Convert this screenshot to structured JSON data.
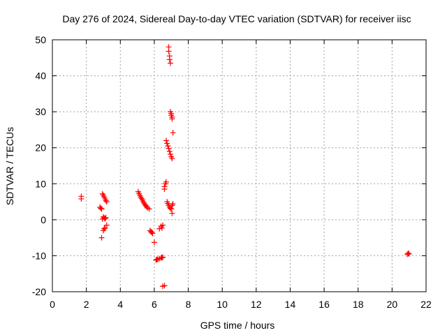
{
  "chart_data": {
    "type": "scatter",
    "title": "Day 276 of 2024, Sidereal Day-to-day VTEC variation (SDTVAR) for receiver iisc",
    "xlabel": "GPS time / hours",
    "ylabel": "SDTVAR / TECUs",
    "xlim": [
      0,
      22
    ],
    "ylim": [
      -20,
      50
    ],
    "xticks": [
      0,
      2,
      4,
      6,
      8,
      10,
      12,
      14,
      16,
      18,
      20,
      22
    ],
    "yticks": [
      -20,
      -10,
      0,
      10,
      20,
      30,
      40,
      50
    ],
    "grid": true,
    "marker": "plus",
    "color": "#ff0000",
    "series": [
      {
        "name": "SDTVAR",
        "points": [
          [
            1.7,
            6.5
          ],
          [
            1.7,
            5.8
          ],
          [
            2.8,
            3.5
          ],
          [
            2.85,
            3.2
          ],
          [
            2.9,
            3.0
          ],
          [
            2.95,
            7.2
          ],
          [
            3.0,
            6.8
          ],
          [
            3.05,
            6.3
          ],
          [
            3.1,
            5.8
          ],
          [
            3.15,
            5.3
          ],
          [
            3.2,
            5.0
          ],
          [
            2.95,
            0.2
          ],
          [
            3.0,
            0.8
          ],
          [
            3.05,
            0.5
          ],
          [
            3.1,
            0.3
          ],
          [
            3.15,
            0.6
          ],
          [
            2.9,
            -5.0
          ],
          [
            3.0,
            -3.0
          ],
          [
            3.05,
            -2.5
          ],
          [
            3.1,
            -2.3
          ],
          [
            3.2,
            -1.5
          ],
          [
            5.05,
            7.8
          ],
          [
            5.1,
            7.3
          ],
          [
            5.15,
            6.8
          ],
          [
            5.2,
            6.3
          ],
          [
            5.25,
            5.9
          ],
          [
            5.3,
            5.5
          ],
          [
            5.35,
            5.0
          ],
          [
            5.4,
            4.6
          ],
          [
            5.45,
            4.2
          ],
          [
            5.5,
            3.9
          ],
          [
            5.55,
            3.6
          ],
          [
            5.6,
            3.3
          ],
          [
            5.7,
            3.0
          ],
          [
            5.75,
            -3.0
          ],
          [
            5.8,
            -3.3
          ],
          [
            5.85,
            -3.5
          ],
          [
            5.9,
            -3.8
          ],
          [
            6.0,
            -6.3
          ],
          [
            6.1,
            -11.2
          ],
          [
            6.15,
            -11.0
          ],
          [
            6.2,
            -11.0
          ],
          [
            6.3,
            -10.8
          ],
          [
            6.4,
            -10.6
          ],
          [
            6.45,
            -10.5
          ],
          [
            6.5,
            -10.4
          ],
          [
            6.3,
            -2.5
          ],
          [
            6.4,
            -1.8
          ],
          [
            6.45,
            -2.3
          ],
          [
            6.5,
            -1.5
          ],
          [
            6.5,
            -18.5
          ],
          [
            6.6,
            -18.3
          ],
          [
            6.6,
            8.5
          ],
          [
            6.6,
            9.2
          ],
          [
            6.65,
            10.0
          ],
          [
            6.7,
            10.5
          ],
          [
            6.75,
            5.0
          ],
          [
            6.8,
            4.5
          ],
          [
            6.85,
            4.0
          ],
          [
            6.9,
            3.5
          ],
          [
            6.95,
            3.2
          ],
          [
            7.0,
            3.0
          ],
          [
            7.05,
            4.0
          ],
          [
            7.1,
            4.4
          ],
          [
            7.05,
            1.8
          ],
          [
            6.7,
            22.0
          ],
          [
            6.75,
            21.2
          ],
          [
            6.8,
            20.5
          ],
          [
            6.85,
            19.8
          ],
          [
            6.9,
            19.0
          ],
          [
            6.95,
            18.2
          ],
          [
            7.0,
            17.5
          ],
          [
            7.05,
            17.0
          ],
          [
            7.1,
            24.2
          ],
          [
            6.85,
            48.0
          ],
          [
            6.85,
            46.8
          ],
          [
            6.9,
            45.5
          ],
          [
            6.9,
            44.5
          ],
          [
            6.95,
            43.5
          ],
          [
            6.95,
            30.0
          ],
          [
            7.0,
            29.5
          ],
          [
            7.0,
            29.0
          ],
          [
            7.05,
            28.5
          ],
          [
            7.05,
            28.0
          ],
          [
            20.9,
            -9.6
          ],
          [
            20.95,
            -9.3
          ],
          [
            21.0,
            -9.5
          ]
        ]
      }
    ]
  }
}
